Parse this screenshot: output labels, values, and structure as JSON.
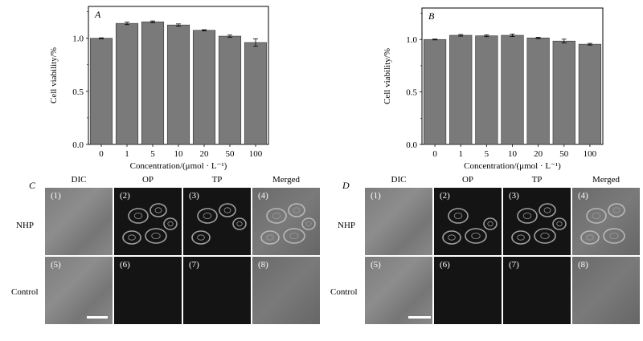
{
  "chart_data": [
    {
      "type": "bar",
      "panel_label": "A",
      "categories": [
        "0",
        "1",
        "5",
        "10",
        "20",
        "50",
        "100"
      ],
      "values": [
        1.0,
        1.14,
        1.155,
        1.125,
        1.075,
        1.02,
        0.96
      ],
      "errors": [
        0.004,
        0.012,
        0.008,
        0.01,
        0.006,
        0.01,
        0.035
      ],
      "xlabel": "Concentration/(μmol · L⁻¹)",
      "ylabel": "Cell viability/%",
      "ylim": [
        0,
        1.3
      ],
      "yticks": [
        "0.0",
        "0.5",
        "1.0"
      ],
      "bar_color": "#7a7a7a",
      "grid": false
    },
    {
      "type": "bar",
      "panel_label": "B",
      "categories": [
        "0",
        "1",
        "5",
        "10",
        "20",
        "50",
        "100"
      ],
      "values": [
        1.0,
        1.04,
        1.035,
        1.04,
        1.015,
        0.985,
        0.955
      ],
      "errors": [
        0.004,
        0.008,
        0.008,
        0.012,
        0.006,
        0.018,
        0.008
      ],
      "xlabel": "Concentration/(μmol · L⁻¹)",
      "ylabel": "Cell viability/%",
      "ylim": [
        0,
        1.3
      ],
      "yticks": [
        "0.0",
        "0.5",
        "1.0"
      ],
      "bar_color": "#7a7a7a",
      "grid": false
    }
  ],
  "panel_c": {
    "label": "C",
    "columns": [
      "DIC",
      "OP",
      "TP",
      "Merged"
    ],
    "rows": [
      "NHP",
      "Control"
    ],
    "numbers": [
      "(1)",
      "(2)",
      "(3)",
      "(4)",
      "(5)",
      "(6)",
      "(7)",
      "(8)"
    ]
  },
  "panel_d": {
    "label": "D",
    "columns": [
      "DIC",
      "OP",
      "TP",
      "Merged"
    ],
    "rows": [
      "NHP",
      "Control"
    ],
    "numbers": [
      "(1)",
      "(2)",
      "(3)",
      "(4)",
      "(5)",
      "(6)",
      "(7)",
      "(8)"
    ]
  }
}
